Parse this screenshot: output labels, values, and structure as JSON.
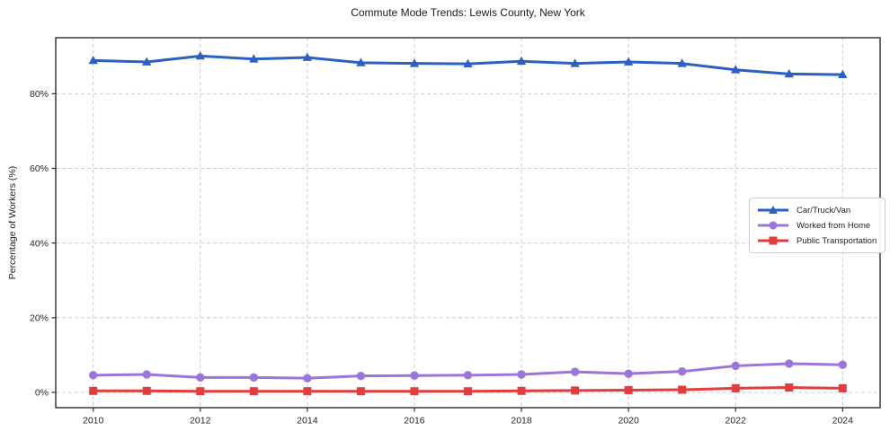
{
  "title": "Commute Mode Trends: Lewis County, New York",
  "axes": {
    "ylabel": "Percentage of Workers (%)",
    "y_tick_labels": [
      "0%",
      "20%",
      "40%",
      "60%",
      "80%"
    ],
    "x_tick_labels": [
      "2010",
      "2012",
      "2014",
      "2016",
      "2018",
      "2020",
      "2022",
      "2024"
    ]
  },
  "legend": {
    "items": [
      {
        "label": "Car/Truck/Van",
        "marker": "triangle-up-icon",
        "color": "#2a60c4"
      },
      {
        "label": "Worked from Home",
        "marker": "circle-icon",
        "color": "#9b74dc"
      },
      {
        "label": "Public Transportation",
        "marker": "square-icon",
        "color": "#e23c3c"
      }
    ]
  },
  "chart_data": {
    "type": "line",
    "title": "Commute Mode Trends: Lewis County, New York",
    "xlabel": "",
    "ylabel": "Percentage of Workers (%)",
    "x": [
      2010,
      2011,
      2012,
      2013,
      2014,
      2015,
      2016,
      2017,
      2018,
      2019,
      2020,
      2021,
      2022,
      2023,
      2024
    ],
    "series": [
      {
        "name": "Car/Truck/Van",
        "marker": "triangle-up",
        "color": "#2a60c4",
        "values": [
          88.9,
          88.5,
          90.1,
          89.3,
          89.7,
          88.3,
          88.1,
          88.0,
          88.7,
          88.1,
          88.5,
          88.1,
          86.4,
          85.3,
          85.1
        ]
      },
      {
        "name": "Worked from Home",
        "marker": "circle",
        "color": "#9b74dc",
        "values": [
          4.6,
          4.8,
          4.0,
          4.0,
          3.8,
          4.4,
          4.5,
          4.6,
          4.8,
          5.5,
          5.0,
          5.6,
          7.1,
          7.7,
          7.4
        ]
      },
      {
        "name": "Public Transportation",
        "marker": "square",
        "color": "#e23c3c",
        "values": [
          0.4,
          0.4,
          0.3,
          0.3,
          0.3,
          0.3,
          0.3,
          0.3,
          0.4,
          0.5,
          0.6,
          0.7,
          1.1,
          1.3,
          1.1
        ]
      }
    ],
    "x_ticks": [
      2010,
      2012,
      2014,
      2016,
      2018,
      2020,
      2022,
      2024
    ],
    "y_ticks": [
      0,
      20,
      40,
      60,
      80
    ],
    "xlim": [
      2009.3,
      2024.7
    ],
    "ylim": [
      -4.1,
      95
    ],
    "grid": true,
    "grid_style": "dashed",
    "legend_position": "center right"
  },
  "colors": {
    "grid": "#cccccc",
    "spine": "#2b2b2b",
    "tick_text": "#262626",
    "background": "#ffffff"
  }
}
